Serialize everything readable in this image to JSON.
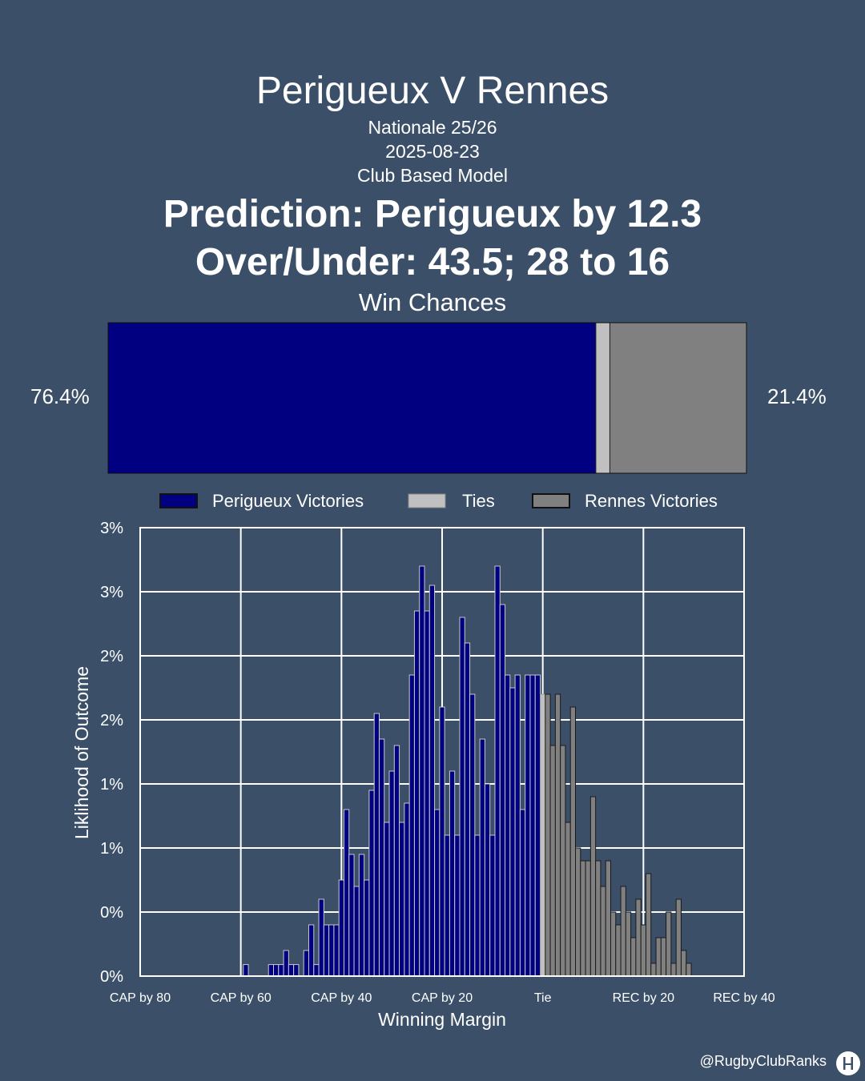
{
  "header": {
    "title": "Perigueux V Rennes",
    "competition": "Nationale 25/26",
    "date": "2025-08-23",
    "model": "Club Based Model",
    "prediction": "Prediction: Perigueux by 12.3",
    "over_under": "Over/Under: 43.5; 28 to 16"
  },
  "win_chances": {
    "title": "Win Chances",
    "home_pct_label": "76.4%",
    "away_pct_label": "21.4%",
    "home": 76.4,
    "tie": 2.2,
    "away": 21.4
  },
  "legend": {
    "home": "Perigueux Victories",
    "tie": "Ties",
    "away": "Rennes Victories"
  },
  "colors": {
    "background": "#3b5068",
    "home": "#000080",
    "tie": "#c0c0c0",
    "away": "#808080"
  },
  "footer": {
    "handle": "@RugbyClubRanks"
  },
  "chart_data": {
    "type": "bar",
    "xlabel": "Winning Margin",
    "ylabel": "Liklihood of Outcome",
    "x_ticks": [
      {
        "value": -80,
        "label": "CAP by 80"
      },
      {
        "value": -60,
        "label": "CAP by 60"
      },
      {
        "value": -40,
        "label": "CAP by 40"
      },
      {
        "value": -20,
        "label": "CAP by 20"
      },
      {
        "value": 0,
        "label": "Tie"
      },
      {
        "value": 20,
        "label": "REC by 20"
      },
      {
        "value": 40,
        "label": "REC by 40"
      }
    ],
    "y_ticks": [
      {
        "value": 0,
        "label": "0%"
      },
      {
        "value": 0.5,
        "label": "0%"
      },
      {
        "value": 1.0,
        "label": "1%"
      },
      {
        "value": 1.5,
        "label": "1%"
      },
      {
        "value": 2.0,
        "label": "2%"
      },
      {
        "value": 2.5,
        "label": "2%"
      },
      {
        "value": 3.0,
        "label": "3%"
      },
      {
        "value": 3.5,
        "label": "3%"
      }
    ],
    "xlim": [
      -80,
      40
    ],
    "ylim": [
      0,
      3.5
    ],
    "grid": true,
    "series": [
      {
        "name": "Perigueux Victories",
        "x": [
          -59,
          -54,
          -53,
          -52,
          -51,
          -50,
          -49,
          -47,
          -46,
          -45,
          -44,
          -43,
          -42,
          -41,
          -40,
          -39,
          -38,
          -37,
          -36,
          -35,
          -34,
          -33,
          -32,
          -31,
          -30,
          -29,
          -28,
          -27,
          -26,
          -25,
          -24,
          -23,
          -22,
          -21,
          -20,
          -19,
          -18,
          -17,
          -16,
          -15,
          -14,
          -13,
          -12,
          -11,
          -10,
          -9,
          -8,
          -7,
          -6,
          -5,
          -4,
          -3,
          -2,
          -1
        ],
        "values": [
          0.09,
          0.09,
          0.09,
          0.09,
          0.2,
          0.09,
          0.09,
          0.2,
          0.4,
          0.09,
          0.6,
          0.4,
          0.4,
          0.4,
          0.75,
          1.3,
          0.95,
          0.7,
          0.95,
          0.75,
          1.45,
          2.05,
          1.85,
          1.2,
          1.6,
          1.8,
          1.2,
          1.35,
          2.35,
          2.85,
          3.2,
          2.85,
          3.05,
          1.3,
          2.1,
          1.1,
          1.6,
          1.1,
          2.8,
          2.6,
          2.2,
          1.1,
          1.85,
          1.5,
          1.1,
          3.2,
          2.9,
          2.35,
          2.25,
          2.35,
          1.3,
          2.35,
          2.35,
          2.35
        ]
      },
      {
        "name": "Ties",
        "x": [
          0
        ],
        "values": [
          2.2
        ]
      },
      {
        "name": "Rennes Victories",
        "x": [
          1,
          2,
          3,
          4,
          5,
          6,
          7,
          8,
          9,
          10,
          11,
          12,
          13,
          14,
          15,
          16,
          17,
          18,
          19,
          20,
          21,
          22,
          23,
          24,
          25,
          26,
          27,
          28,
          29
        ],
        "values": [
          2.2,
          1.8,
          2.2,
          1.8,
          1.2,
          2.1,
          1.0,
          0.9,
          0.9,
          1.4,
          0.9,
          0.7,
          0.9,
          0.5,
          0.4,
          0.7,
          0.5,
          0.3,
          0.6,
          0.4,
          0.8,
          0.1,
          0.3,
          0.3,
          0.5,
          0.1,
          0.6,
          0.2,
          0.1
        ]
      }
    ]
  }
}
